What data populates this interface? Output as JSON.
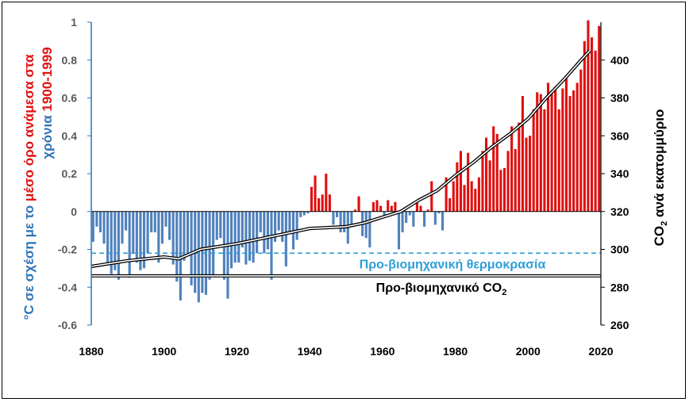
{
  "chart_data": {
    "type": "bar",
    "x_ticks": [
      "1880",
      "1900",
      "1920",
      "1940",
      "1960",
      "1980",
      "2000",
      "2020"
    ],
    "xlim": [
      1880,
      2020
    ],
    "y_left": {
      "lim": [
        -0.6,
        1
      ],
      "ticks": [
        "1",
        "0.8",
        "0.6",
        "0.4",
        "0.2",
        "0",
        "-0.2",
        "-0.4",
        "-0.6"
      ],
      "label_parts": [
        {
          "text": "°C σε σχέση με το ",
          "color": "#2e75b6"
        },
        {
          "text": "μέσο όρο ανάμεσα στα",
          "color": "#e0100f"
        },
        {
          "text": "χρόνια ",
          "color": "#2e75b6"
        },
        {
          "text": "1900-1999",
          "color": "#e0100f"
        }
      ]
    },
    "y_right": {
      "lim": [
        260,
        420
      ],
      "ticks": [
        "400",
        "380",
        "360",
        "340",
        "320",
        "300",
        "280",
        "260"
      ],
      "label_main": "CO",
      "label_sub": "2",
      "label_rest": " ανά εκατομμύριο"
    },
    "colors": {
      "positive": "#e0100f",
      "negative": "#4f81bd",
      "axis_left": "#2e75b6",
      "preind_temp": "#2e9ed6",
      "co2_line": "#000000"
    },
    "annotations": {
      "preind_temp_label": "Προ-βιομηχανική θερμοκρασία",
      "preind_temp_value": -0.22,
      "preind_co2_main": "Προ-βιομηχανικό CO",
      "preind_co2_sub": "2",
      "preind_co2_value": 286
    },
    "temperature_anomaly": {
      "years_start": 1880,
      "values": [
        -0.16,
        -0.08,
        -0.11,
        -0.17,
        -0.28,
        -0.33,
        -0.31,
        -0.36,
        -0.17,
        -0.1,
        -0.35,
        -0.22,
        -0.27,
        -0.31,
        -0.3,
        -0.22,
        -0.11,
        -0.11,
        -0.27,
        -0.17,
        -0.08,
        -0.15,
        -0.28,
        -0.37,
        -0.47,
        -0.26,
        -0.22,
        -0.39,
        -0.43,
        -0.48,
        -0.43,
        -0.44,
        -0.36,
        -0.34,
        -0.15,
        -0.14,
        -0.36,
        -0.46,
        -0.3,
        -0.27,
        -0.27,
        -0.19,
        -0.28,
        -0.26,
        -0.27,
        -0.22,
        -0.11,
        -0.22,
        -0.2,
        -0.36,
        -0.16,
        -0.1,
        -0.16,
        -0.29,
        -0.12,
        -0.2,
        -0.15,
        -0.03,
        -0.02,
        -0.01,
        0.13,
        0.19,
        0.07,
        0.09,
        0.2,
        0.09,
        -0.07,
        -0.03,
        -0.11,
        -0.11,
        -0.17,
        -0.07,
        0.01,
        0.08,
        -0.13,
        -0.14,
        -0.19,
        0.05,
        0.06,
        0.03,
        -0.03,
        0.06,
        0.03,
        0.05,
        -0.2,
        -0.11,
        -0.06,
        -0.02,
        -0.08,
        0.05,
        0.03,
        -0.08,
        0.01,
        0.16,
        -0.07,
        -0.01,
        -0.1,
        0.18,
        0.07,
        0.16,
        0.26,
        0.32,
        0.14,
        0.31,
        0.16,
        0.12,
        0.18,
        0.32,
        0.39,
        0.27,
        0.45,
        0.41,
        0.22,
        0.23,
        0.32,
        0.45,
        0.33,
        0.47,
        0.61,
        0.39,
        0.4,
        0.54,
        0.63,
        0.62,
        0.54,
        0.68,
        0.64,
        0.66,
        0.54,
        0.65,
        0.72,
        0.61,
        0.64,
        0.68,
        0.75,
        0.9,
        1.01,
        0.92,
        0.85,
        0.98
      ]
    },
    "co2": {
      "points": [
        [
          1880,
          291
        ],
        [
          1890,
          294
        ],
        [
          1900,
          296
        ],
        [
          1904,
          295
        ],
        [
          1910,
          300
        ],
        [
          1920,
          303
        ],
        [
          1930,
          307
        ],
        [
          1940,
          311
        ],
        [
          1950,
          312
        ],
        [
          1955,
          314
        ],
        [
          1960,
          317
        ],
        [
          1965,
          320
        ],
        [
          1970,
          326
        ],
        [
          1975,
          331
        ],
        [
          1980,
          339
        ],
        [
          1985,
          346
        ],
        [
          1990,
          354
        ],
        [
          1995,
          361
        ],
        [
          2000,
          369
        ],
        [
          2005,
          380
        ],
        [
          2010,
          390
        ],
        [
          2015,
          401
        ],
        [
          2017,
          405
        ]
      ]
    }
  }
}
